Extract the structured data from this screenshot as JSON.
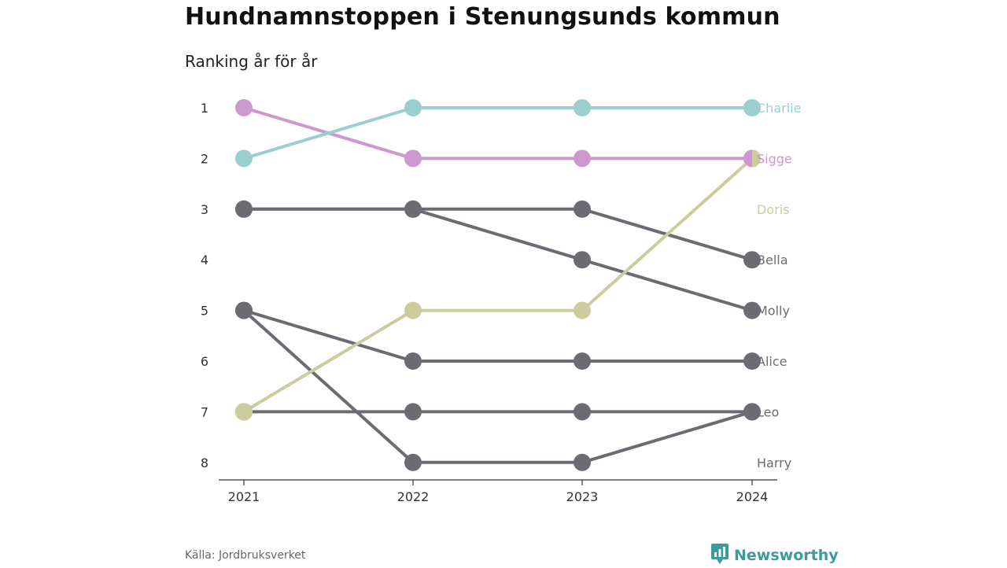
{
  "title": "Hundnamnstoppen i Stenungsunds kommun",
  "subtitle": "Ranking år för år",
  "source": "Källa: Jordbruksverket",
  "brand": {
    "name": "Newsworthy",
    "icon": "newsworthy-logo-icon",
    "color": "#3a9b9a"
  },
  "chart_data": {
    "type": "line",
    "subtype": "bump",
    "x": [
      "2021",
      "2022",
      "2023",
      "2024"
    ],
    "y_ticks": [
      1,
      2,
      3,
      4,
      5,
      6,
      7,
      8
    ],
    "ylim": [
      1,
      8
    ],
    "y_inverted": true,
    "grid": false,
    "colors": {
      "Charlie": "#9bcfcf",
      "Sigge": "#cd98cf",
      "Doris": "#cccc9c",
      "gray": "#6b6b73"
    },
    "series": [
      {
        "name": "Bella",
        "values": [
          3,
          3,
          3,
          4
        ],
        "color": "#6b6b73"
      },
      {
        "name": "Molly",
        "values": [
          3,
          3,
          4,
          5
        ],
        "color": "#6b6b73"
      },
      {
        "name": "Alice",
        "values": [
          5,
          6,
          6,
          6
        ],
        "color": "#6b6b73"
      },
      {
        "name": "Leo",
        "values": [
          7,
          7,
          7,
          7
        ],
        "color": "#6b6b73"
      },
      {
        "name": "Harry",
        "values": [
          5,
          8,
          8,
          7
        ],
        "color": "#6b6b73"
      },
      {
        "name": "Doris",
        "values": [
          7,
          5,
          5,
          2
        ],
        "color": "#cccc9c"
      },
      {
        "name": "Sigge",
        "values": [
          1,
          2,
          2,
          2
        ],
        "color": "#cd98cf"
      },
      {
        "name": "Charlie",
        "values": [
          2,
          1,
          1,
          1
        ],
        "color": "#9bcfcf"
      }
    ],
    "end_labels": [
      {
        "name": "Charlie",
        "rank": 1,
        "color": "#9bcfcf"
      },
      {
        "name": "Sigge",
        "rank": 2,
        "color": "#cd98cf"
      },
      {
        "name": "Doris",
        "rank": 3,
        "color": "#cccc9c"
      },
      {
        "name": "Bella",
        "rank": 4,
        "color": "#6b6b73"
      },
      {
        "name": "Molly",
        "rank": 5,
        "color": "#6b6b73"
      },
      {
        "name": "Alice",
        "rank": 6,
        "color": "#6b6b73"
      },
      {
        "name": "Leo",
        "rank": 7,
        "color": "#6b6b73"
      },
      {
        "name": "Harry",
        "rank": 8,
        "color": "#6b6b73"
      }
    ]
  }
}
